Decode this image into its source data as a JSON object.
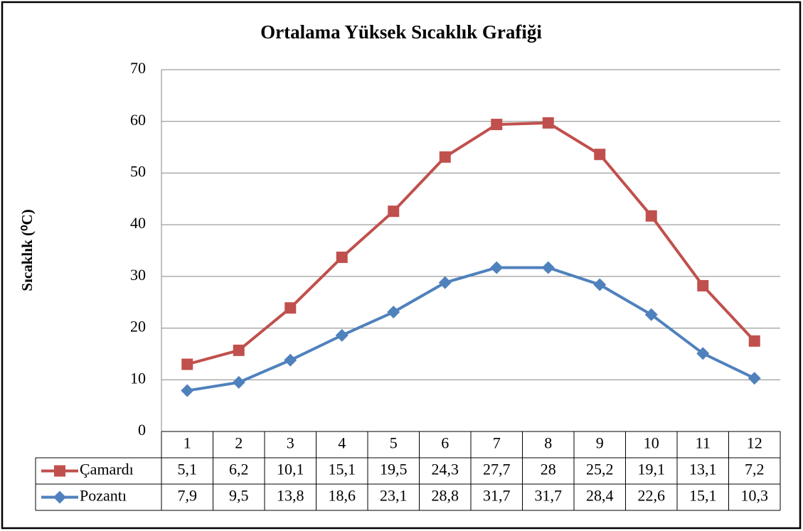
{
  "chart_data": {
    "type": "line",
    "stacked": true,
    "title": "Ortalama  Yüksek Sıcaklık Grafiği",
    "y_label": "Sıcaklık (⁰C)",
    "categories": [
      "1",
      "2",
      "3",
      "4",
      "5",
      "6",
      "7",
      "8",
      "9",
      "10",
      "11",
      "12"
    ],
    "series": [
      {
        "name": "Çamardı",
        "color": "#c0504d",
        "marker": "square",
        "values": [
          5.1,
          6.2,
          10.1,
          15.1,
          19.5,
          24.3,
          27.7,
          28,
          25.2,
          19.1,
          13.1,
          7.2
        ],
        "value_labels": [
          "5,1",
          "6,2",
          "10,1",
          "15,1",
          "19,5",
          "24,3",
          "27,7",
          "28",
          "25,2",
          "19,1",
          "13,1",
          "7,2"
        ]
      },
      {
        "name": "Pozantı",
        "color": "#4f81bd",
        "marker": "diamond",
        "values": [
          7.9,
          9.5,
          13.8,
          18.6,
          23.1,
          28.8,
          31.7,
          31.7,
          28.4,
          22.6,
          15.1,
          10.3
        ],
        "value_labels": [
          "7,9",
          "9,5",
          "13,8",
          "18,6",
          "23,1",
          "28,8",
          "31,7",
          "31,7",
          "28,4",
          "22,6",
          "15,1",
          "10,3"
        ]
      }
    ],
    "ylim": [
      0,
      70
    ],
    "yticks": [
      0,
      10,
      20,
      30,
      40,
      50,
      60,
      70
    ],
    "grid": true
  }
}
